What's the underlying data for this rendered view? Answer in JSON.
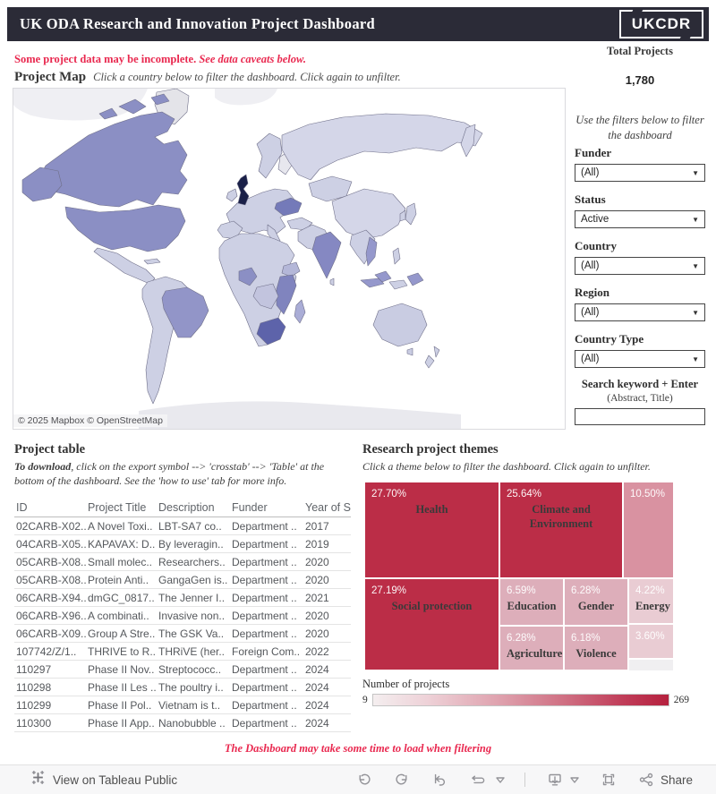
{
  "header": {
    "title": "UK ODA Research and Innovation Project Dashboard",
    "logo_text": "UKCDR"
  },
  "notices": {
    "incomplete_bold": "Some project data may be incomplete.",
    "incomplete_italic": "See data caveats below.",
    "loading": "The Dashboard may take some time to load when filtering"
  },
  "map_section": {
    "title": "Project Map",
    "subtitle": "Click a country below to filter the dashboard. Click again to unfilter.",
    "attribution": "© 2025 Mapbox  © OpenStreetMap"
  },
  "totals": {
    "label": "Total Projects",
    "value": "1,780"
  },
  "filters": {
    "intro": "Use the filters below to filter the dashboard",
    "groups": [
      {
        "label": "Funder",
        "value": "(All)"
      },
      {
        "label": "Status",
        "value": "Active"
      },
      {
        "label": "Country",
        "value": "(All)"
      },
      {
        "label": "Region",
        "value": "(All)"
      },
      {
        "label": "Country Type",
        "value": "(All)"
      }
    ],
    "search_label": "Search keyword + Enter",
    "search_sublabel": "(Abstract, Title)",
    "search_value": ""
  },
  "table": {
    "title": "Project table",
    "instructions_bold": "To download",
    "instructions_rest": ", click on the export symbol --> 'crosstab' --> 'Table' at the bottom of the dashboard. See the 'how to use' tab for more info.",
    "columns": [
      "ID",
      "Project Title",
      "Description",
      "Funder",
      "Year of S"
    ],
    "rows": [
      {
        "id": "02CARB-X02..",
        "title": "A Novel Toxi..",
        "desc": "LBT-SA7 co..",
        "funder": "Department ..",
        "year": "2017"
      },
      {
        "id": "04CARB-X05..",
        "title": "KAPAVAX: D..",
        "desc": "By leveragin..",
        "funder": "Department ..",
        "year": "2019"
      },
      {
        "id": "05CARB-X08..",
        "title": "Small molec..",
        "desc": "Researchers..",
        "funder": "Department ..",
        "year": "2020"
      },
      {
        "id": "05CARB-X08..",
        "title": "Protein Anti..",
        "desc": "GangaGen is..",
        "funder": "Department ..",
        "year": "2020"
      },
      {
        "id": "06CARB-X94..",
        "title": "dmGC_0817..",
        "desc": "The Jenner I..",
        "funder": "Department ..",
        "year": "2021"
      },
      {
        "id": "06CARB-X96..",
        "title": "A combinati..",
        "desc": "Invasive non..",
        "funder": "Department ..",
        "year": "2020"
      },
      {
        "id": "06CARB-X09..",
        "title": "Group A Stre..",
        "desc": "The GSK Va..",
        "funder": "Department ..",
        "year": "2020"
      },
      {
        "id": "107742/Z/1..",
        "title": "THRIVE to R..",
        "desc": "THRiVE (her..",
        "funder": "Foreign Com..",
        "year": "2022"
      },
      {
        "id": "110297",
        "title": "Phase II Nov..",
        "desc": "Streptococc..",
        "funder": "Department ..",
        "year": "2024"
      },
      {
        "id": "110298",
        "title": "Phase II Les ..",
        "desc": "The poultry i..",
        "funder": "Department ..",
        "year": "2024"
      },
      {
        "id": "110299",
        "title": "Phase II Pol..",
        "desc": "Vietnam is t..",
        "funder": "Department ..",
        "year": "2024"
      },
      {
        "id": "110300",
        "title": "Phase II App..",
        "desc": "Nanobubble ..",
        "funder": "Department ..",
        "year": "2024"
      }
    ]
  },
  "themes": {
    "title": "Research project themes",
    "subtitle": "Click a theme below to filter the dashboard. Click again to unfilter.",
    "legend_title": "Number of projects",
    "legend_min": "9",
    "legend_max": "269"
  },
  "chart_data": [
    {
      "type": "treemap",
      "title": "Research project themes",
      "value_unit": "percent of projects",
      "tiles": [
        {
          "label": "Health",
          "value_pct": 27.7,
          "display": "27.70%",
          "shade": "dark"
        },
        {
          "label": "Climate and Environment",
          "value_pct": 25.64,
          "display": "25.64%",
          "shade": "dark"
        },
        {
          "label": "",
          "value_pct": 10.5,
          "display": "10.50%",
          "shade": "medium"
        },
        {
          "label": "Social protection",
          "value_pct": 27.19,
          "display": "27.19%",
          "shade": "dark"
        },
        {
          "label": "Education",
          "value_pct": 6.59,
          "display": "6.59%",
          "shade": "light"
        },
        {
          "label": "Gender",
          "value_pct": 6.28,
          "display": "6.28%",
          "shade": "light"
        },
        {
          "label": "Energy",
          "value_pct": 4.22,
          "display": "4.22%",
          "shade": "xlight"
        },
        {
          "label": "Agriculture",
          "value_pct": 6.28,
          "display": "6.28%",
          "shade": "light"
        },
        {
          "label": "Violence",
          "value_pct": 6.18,
          "display": "6.18%",
          "shade": "light"
        },
        {
          "label": "",
          "value_pct": 3.6,
          "display": "3.60%",
          "shade": "xlight"
        }
      ],
      "color_scale": {
        "label": "Number of projects",
        "min": 9,
        "max": 269,
        "min_color": "#f4eeef",
        "max_color": "#b5213e"
      }
    },
    {
      "type": "choropleth",
      "title": "Project Map",
      "darkest_country": "United Kingdom",
      "high_intensity_countries": [
        "Canada",
        "United States",
        "Brazil",
        "India",
        "Ukraine",
        "Nigeria",
        "Kenya",
        "Tanzania",
        "South Africa",
        "Indonesia"
      ],
      "attribution": "© 2025 Mapbox  © OpenStreetMap"
    }
  ],
  "footer": {
    "view_on_tableau_label": "View on Tableau Public",
    "share_label": "Share",
    "icon_names": [
      "tableau-logo-icon",
      "undo-icon",
      "redo-icon",
      "revert-icon",
      "refresh-icon",
      "download-icon",
      "fullscreen-icon",
      "share-icon"
    ]
  },
  "colors": {
    "header_bg": "#2b2b37",
    "accent_red": "#e9284f",
    "treemap_dark": "#bb2d47",
    "treemap_medium": "#d992a1",
    "treemap_light": "#ddaeba",
    "treemap_xlight": "#e9ccd3",
    "map_highlight_purple": "#8b8fc4",
    "map_darkest_navy": "#1a2048"
  }
}
